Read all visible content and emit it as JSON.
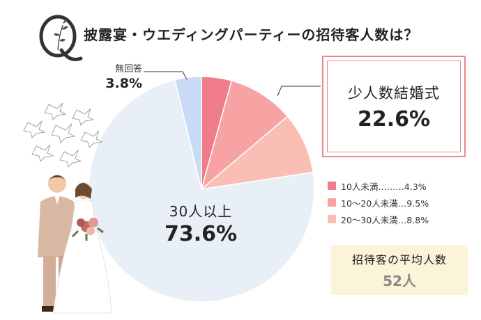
{
  "title": "披露宴・ウエディングパーティーの招待客人数は？",
  "chart_data": {
    "type": "pie",
    "title": "披露宴・ウエディングパーティーの招待客人数は？",
    "slices": [
      {
        "name": "10人未満",
        "value": 4.3,
        "color": "#f07b8a"
      },
      {
        "name": "10〜20人未満",
        "value": 9.5,
        "color": "#f8a3a3"
      },
      {
        "name": "20〜30人未満",
        "value": 8.8,
        "color": "#fbbeb4"
      },
      {
        "name": "30人以上",
        "value": 73.6,
        "color": "#e9eff7"
      },
      {
        "name": "無回答",
        "value": 3.8,
        "color": "#c9daf4"
      }
    ],
    "start_angle_deg": 0,
    "direction": "clockwise"
  },
  "labels": {
    "none_name": "無回答",
    "none_value": "3.8%",
    "over30_name": "30人以上",
    "over30_value": "73.6%"
  },
  "small_wedding": {
    "name": "少人数結婚式",
    "value": "22.6%",
    "border_color": "#e9878d"
  },
  "legend": [
    {
      "text": "10人未満………4.3%",
      "color": "#f07b8a"
    },
    {
      "text": "10〜20人未満…9.5%",
      "color": "#f8a3a3"
    },
    {
      "text": "20〜30人未満…8.8%",
      "color": "#fbbeb4"
    }
  ],
  "average": {
    "label": "招待客の平均人数",
    "value": "52人",
    "bg_color": "#fbf4d9"
  },
  "icons": {
    "q_mark": "q-letter-floral-icon",
    "doves": "doves-icon",
    "couple": "wedding-couple-illustration"
  }
}
